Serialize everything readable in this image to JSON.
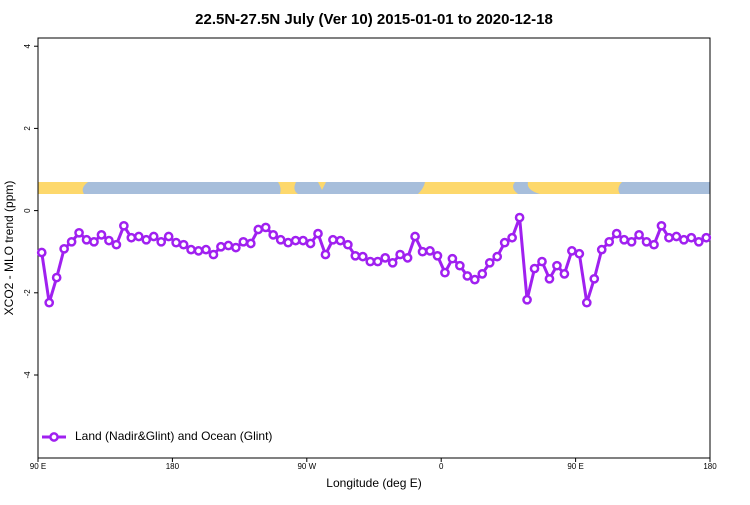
{
  "chart_data": {
    "type": "line",
    "title": "22.5N-27.5N July (Ver 10)   2015-01-01 to 2020-12-18",
    "x_label": "Longitude (deg E)",
    "y_label": "XCO2 - MLO trend (ppm)",
    "x": [
      92.5,
      97.5,
      102.5,
      107.5,
      112.5,
      117.5,
      122.5,
      127.5,
      132.5,
      137.5,
      142.5,
      147.5,
      152.5,
      157.5,
      162.5,
      167.5,
      172.5,
      177.5,
      182.5,
      187.5,
      192.5,
      197.5,
      202.5,
      207.5,
      212.5,
      217.5,
      222.5,
      227.5,
      232.5,
      237.5,
      242.5,
      247.5,
      252.5,
      257.5,
      262.5,
      267.5,
      272.5,
      277.5,
      282.5,
      287.5,
      292.5,
      297.5,
      302.5,
      307.5,
      312.5,
      317.5,
      322.5,
      327.5,
      332.5,
      337.5,
      342.5,
      347.5,
      352.5,
      357.5,
      362.5,
      367.5,
      372.5,
      377.5,
      382.5,
      387.5,
      392.5,
      397.5,
      402.5,
      407.5,
      412.5,
      417.5,
      422.5,
      427.5,
      432.5,
      437.5,
      442.5,
      447.5,
      452.5,
      457.5,
      462.5,
      467.5,
      472.5,
      477.5,
      482.5,
      487.5,
      492.5,
      497.5,
      502.5,
      507.5,
      512.5,
      517.5,
      522.5,
      527.5,
      532.5,
      537.5
    ],
    "series": [
      {
        "name": "Land (Nadir&Glint) and Ocean (Glint)",
        "color": "#a020f0",
        "values": [
          -1.02,
          -2.24,
          -1.63,
          -0.93,
          -0.76,
          -0.54,
          -0.71,
          -0.76,
          -0.59,
          -0.73,
          -0.83,
          -0.37,
          -0.66,
          -0.63,
          -0.71,
          -0.63,
          -0.76,
          -0.63,
          -0.78,
          -0.83,
          -0.95,
          -0.98,
          -0.95,
          -1.07,
          -0.88,
          -0.85,
          -0.9,
          -0.76,
          -0.8,
          -0.46,
          -0.41,
          -0.59,
          -0.71,
          -0.78,
          -0.73,
          -0.73,
          -0.8,
          -0.56,
          -1.07,
          -0.71,
          -0.73,
          -0.83,
          -1.1,
          -1.12,
          -1.24,
          -1.24,
          -1.15,
          -1.27,
          -1.07,
          -1.15,
          -0.63,
          -1.0,
          -0.98,
          -1.1,
          -1.51,
          -1.17,
          -1.34,
          -1.59,
          -1.68,
          -1.54,
          -1.27,
          -1.12,
          -0.78,
          -0.66,
          -0.17,
          -2.17,
          -1.41,
          -1.24,
          -1.66,
          -1.34,
          -1.54,
          -0.98,
          -1.05,
          -2.24,
          -1.66,
          -0.95,
          -0.76,
          -0.56,
          -0.71,
          -0.76,
          -0.59,
          -0.76,
          -0.83,
          -0.37,
          -0.66,
          -0.63,
          -0.71,
          -0.66,
          -0.76,
          -0.66
        ]
      }
    ],
    "xlim": [
      90,
      540
    ],
    "xticks": [
      {
        "value": 90,
        "label": "90 E"
      },
      {
        "value": 180,
        "label": "180"
      },
      {
        "value": 270,
        "label": "90 W"
      },
      {
        "value": 360,
        "label": "0"
      },
      {
        "value": 450,
        "label": "90 E"
      },
      {
        "value": 540,
        "label": "180"
      }
    ],
    "ylim": [
      -6.02,
      4.2
    ],
    "yticks": [
      -4,
      -2,
      0,
      2,
      4
    ],
    "legend": "bottom left"
  }
}
